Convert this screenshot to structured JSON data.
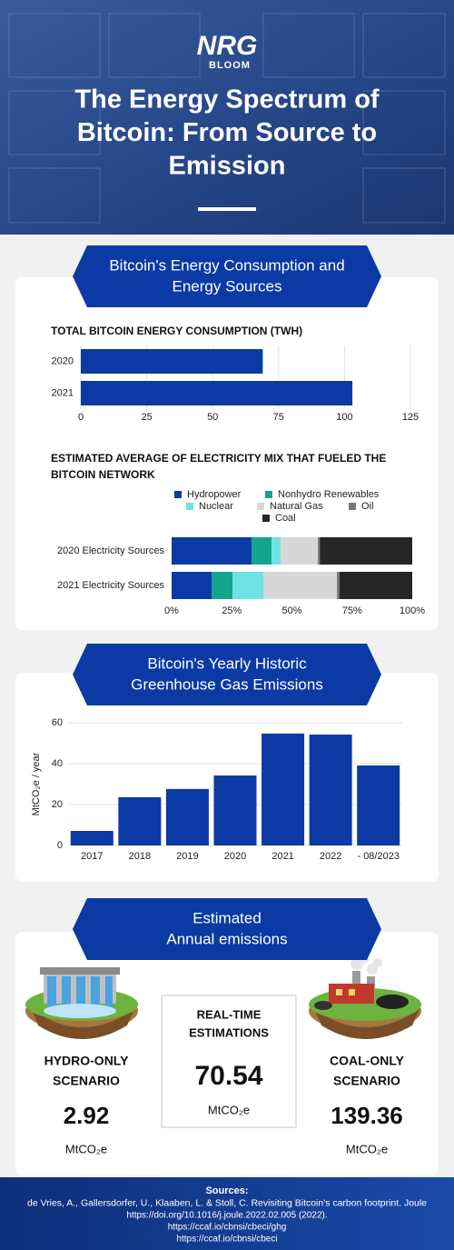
{
  "header": {
    "logo_line1": "NRG",
    "logo_line2": "BLOOM",
    "title_lines": [
      "The Energy Spectrum of",
      "Bitcoin: From Source to",
      "Emission"
    ]
  },
  "sections": [
    {
      "heading_lines": [
        "Bitcoin's Energy Consumption and",
        "Energy Sources"
      ]
    },
    {
      "heading_lines": [
        "Bitcoin's Yearly Historic",
        "Greenhouse Gas Emissions"
      ]
    },
    {
      "heading_lines": [
        "Estimated",
        "Annual emissions"
      ]
    }
  ],
  "chart_data": [
    {
      "type": "bar",
      "orientation": "horizontal",
      "title": "TOTAL BITCOIN ENERGY CONSUMPTION (TWH)",
      "categories": [
        "2020",
        "2021"
      ],
      "values": [
        69,
        103
      ],
      "color": "#0b3aa4",
      "xlim": [
        0,
        125
      ],
      "xticks": [
        0,
        25,
        50,
        75,
        100,
        125
      ],
      "grid": true
    },
    {
      "type": "stacked_bar",
      "orientation": "horizontal",
      "title_lines": [
        "ESTIMATED AVERAGE OF ELECTRICITY MIX THAT FUELED THE",
        "BITCOIN NETWORK"
      ],
      "categories": [
        "2020 Electricity Sources",
        "2021 Electricity Sources"
      ],
      "series": [
        {
          "name": "Hydropower",
          "color": "#0b3aa4",
          "values": [
            33.2,
            16.6
          ]
        },
        {
          "name": "Nonhydro Renewables",
          "color": "#13a58e",
          "values": [
            8.3,
            8.7
          ]
        },
        {
          "name": "Nuclear",
          "color": "#6fe3e3",
          "values": [
            3.8,
            12.8
          ]
        },
        {
          "name": "Natural Gas",
          "color": "#d7d7d7",
          "values": [
            15.5,
            30.6
          ]
        },
        {
          "name": "Oil",
          "color": "#787878",
          "values": [
            0.8,
            1.1
          ]
        },
        {
          "name": "Coal",
          "color": "#262626",
          "values": [
            38.4,
            30.2
          ]
        }
      ],
      "xlim": [
        0,
        100
      ],
      "xticks": [
        {
          "value": 0,
          "label": "0%"
        },
        {
          "value": 25,
          "label": "25%"
        },
        {
          "value": 50,
          "label": "50%"
        },
        {
          "value": 75,
          "label": "75%"
        },
        {
          "value": 100,
          "label": "100%"
        }
      ],
      "grid": false
    },
    {
      "type": "bar",
      "orientation": "vertical",
      "y_label": "MtCO₂e / year",
      "categories": [
        "2017",
        "2018",
        "2019",
        "2020",
        "2021",
        "2022",
        "- 08/2023"
      ],
      "values": [
        7.1,
        23.6,
        27.6,
        34.2,
        54.7,
        54.2,
        39.1
      ],
      "color": "#0b3aa4",
      "ylim": [
        0,
        60
      ],
      "yticks": [
        0,
        20,
        40,
        60
      ],
      "grid": true
    }
  ],
  "scenarios": {
    "hydro": {
      "label_lines": [
        "HYDRO-ONLY",
        "SCENARIO"
      ],
      "value": 2.92,
      "unit": "MtCO₂e"
    },
    "realtime": {
      "label_lines": [
        "REAL-TIME",
        "ESTIMATIONS"
      ],
      "value": 70.54,
      "unit": "MtCO₂e"
    },
    "coal": {
      "label_lines": [
        "COAL-ONLY",
        "SCENARIO"
      ],
      "value": 139.36,
      "unit": "MtCO₂e"
    }
  },
  "sources": {
    "heading": "Sources:",
    "lines": [
      "de Vries, A., Gallersdorfer, U., Klaaben, L. & Stoll, C. Revisiting Bitcoin's carbon footprint. Joule",
      "https://doi.org/10.1016/j.joule.2022.02.005 (2022).",
      "https://ccaf.io/cbnsi/cbeci/ghg",
      "https://ccaf.io/cbnsi/cbeci"
    ]
  }
}
